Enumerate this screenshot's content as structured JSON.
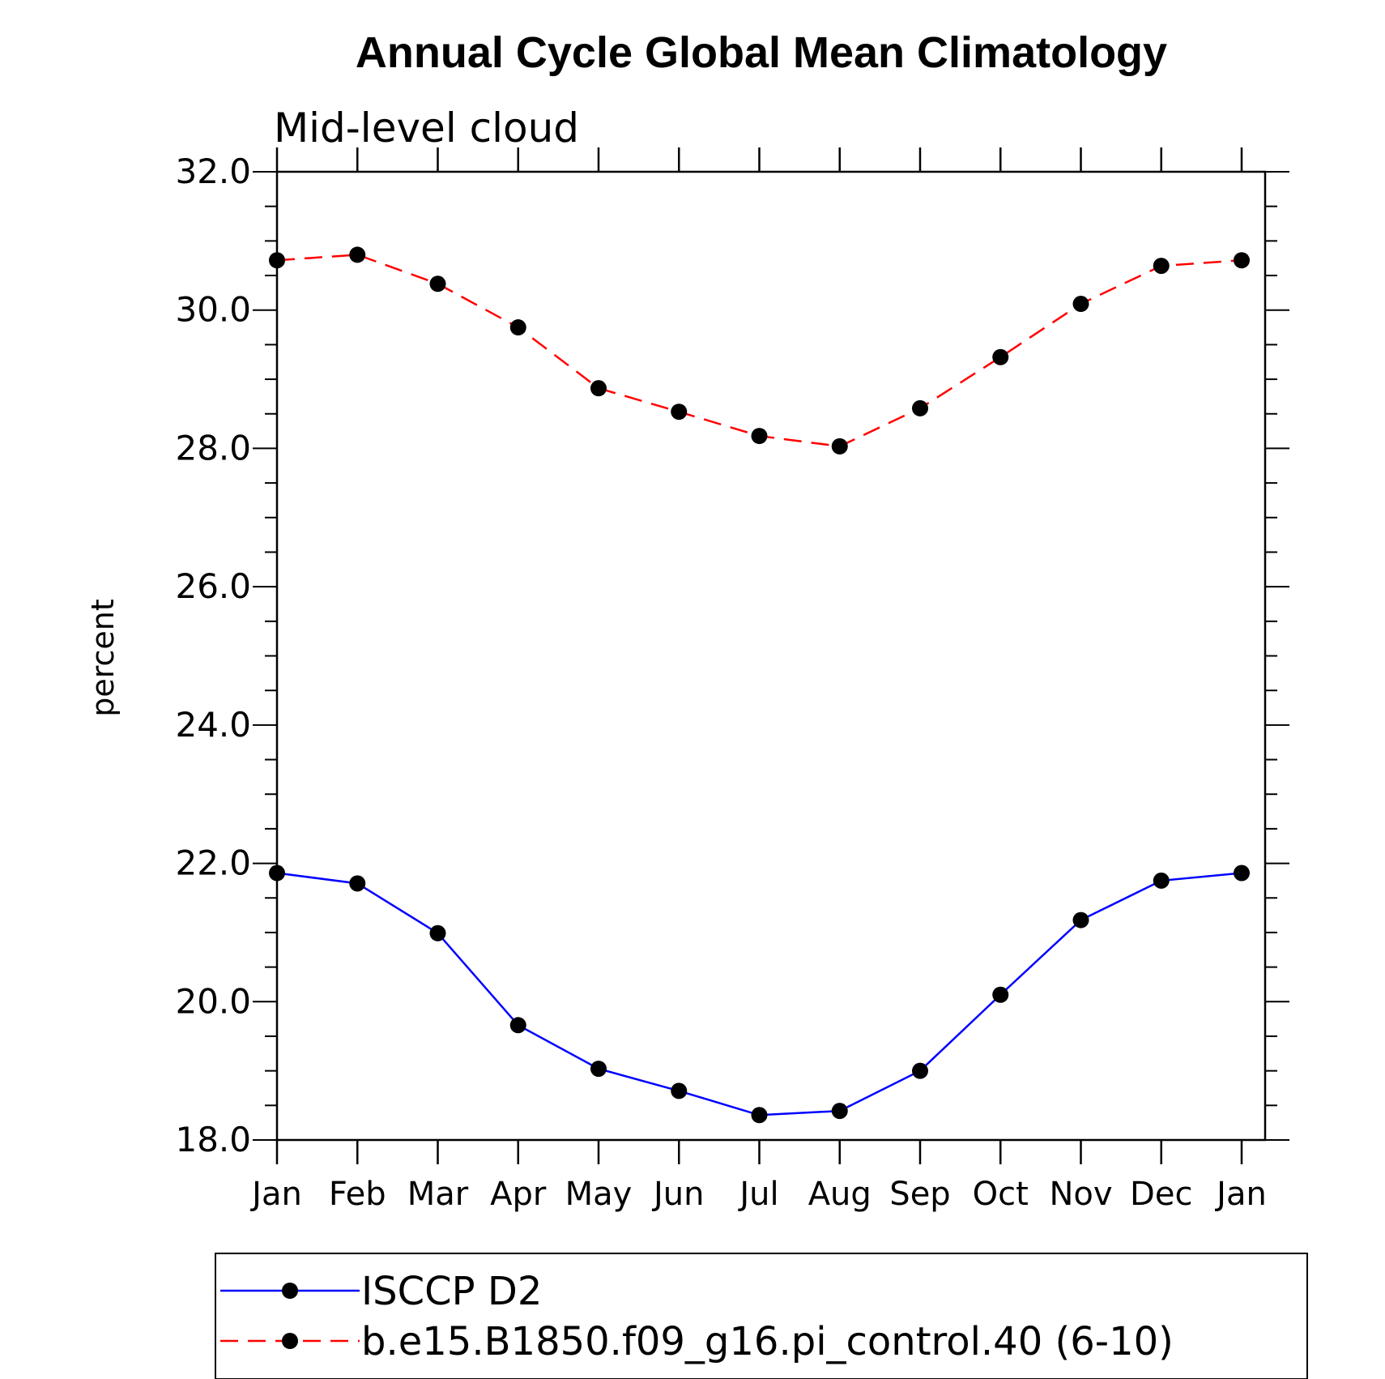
{
  "chart_data": {
    "type": "line",
    "title": "Annual Cycle Global Mean Climatology",
    "subtitle": "Mid-level cloud",
    "xlabel": "",
    "ylabel": "percent",
    "categories": [
      "Jan",
      "Feb",
      "Mar",
      "Apr",
      "May",
      "Jun",
      "Jul",
      "Aug",
      "Sep",
      "Oct",
      "Nov",
      "Dec",
      "Jan"
    ],
    "ylim": [
      18.0,
      32.0
    ],
    "yticks": [
      "18.0",
      "20.0",
      "22.0",
      "24.0",
      "26.0",
      "28.0",
      "30.0",
      "32.0"
    ],
    "ytick_values": [
      18,
      20,
      22,
      24,
      26,
      28,
      30,
      32
    ],
    "y_minor_step": 0.5,
    "grid": false,
    "legend_position": "bottom",
    "series": [
      {
        "name": "ISCCP D2",
        "color": "#0000ff",
        "dash": "solid",
        "marker": "filled-circle",
        "values": [
          21.86,
          21.71,
          20.99,
          19.66,
          19.03,
          18.71,
          18.36,
          18.42,
          19.0,
          20.1,
          21.18,
          21.75,
          21.86
        ]
      },
      {
        "name": "b.e15.B1850.f09_g16.pi_control.40 (6-10)",
        "color": "#ff0000",
        "dash": "dashed",
        "marker": "filled-circle",
        "values": [
          30.72,
          30.8,
          30.38,
          29.75,
          28.87,
          28.53,
          28.18,
          28.03,
          28.58,
          29.32,
          30.09,
          30.64,
          30.72
        ]
      }
    ]
  }
}
